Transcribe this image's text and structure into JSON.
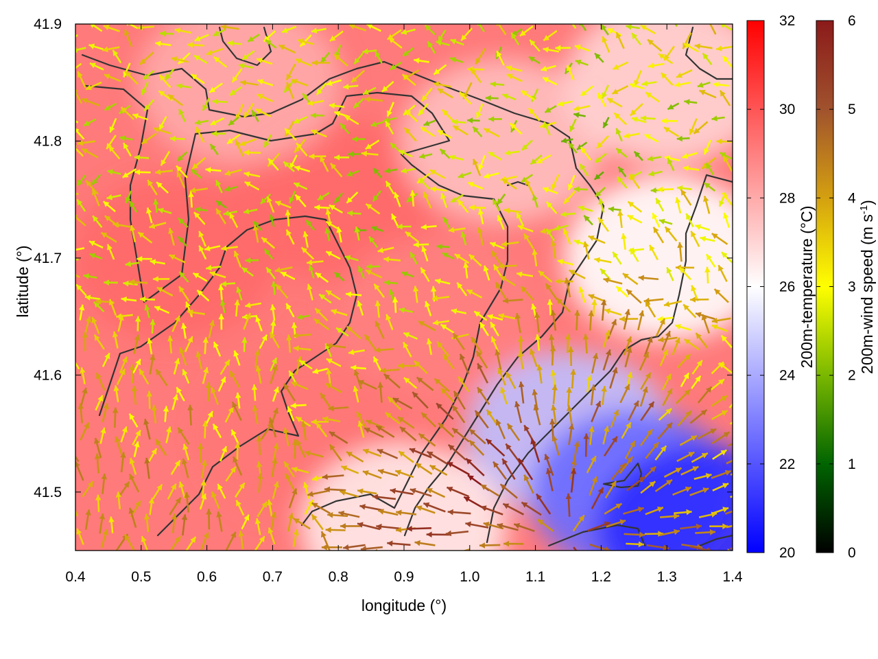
{
  "chart_data": {
    "type": "heatmap",
    "title": "",
    "xlabel": "longitude (°)",
    "ylabel": "latitude (°)",
    "xlim": [
      0.4,
      1.4
    ],
    "ylim": [
      41.45,
      41.9
    ],
    "x_ticks": [
      "0.4",
      "0.5",
      "0.6",
      "0.7",
      "0.8",
      "0.9",
      "1.0",
      "1.1",
      "1.2",
      "1.3",
      "1.4"
    ],
    "y_ticks": [
      "41.5",
      "41.6",
      "41.7",
      "41.8",
      "41.9"
    ],
    "grid": false,
    "legend": "none",
    "overlay": "wind vectors coloured by wind speed with dark grey contour lines",
    "colorbars": [
      {
        "label": "200m-temperature (°C)",
        "range": [
          20,
          32
        ],
        "ticks": [
          "20",
          "22",
          "24",
          "26",
          "28",
          "30",
          "32"
        ],
        "colors": [
          "#0000ff",
          "#ffffff",
          "#ff0000"
        ]
      },
      {
        "label_main": "200m-wind speed (m s",
        "label_sup": "-1",
        "label_end": ")",
        "range": [
          0,
          6
        ],
        "ticks": [
          "0",
          "1",
          "2",
          "3",
          "4",
          "5",
          "6"
        ],
        "colors": [
          "#000000",
          "#006400",
          "#7ab800",
          "#ffff00",
          "#d4a010",
          "#a0522d",
          "#8b1a1a"
        ]
      }
    ],
    "temperature_regions": [
      {
        "lon": 0.55,
        "lat": 41.7,
        "value": 29.5
      },
      {
        "lon": 0.8,
        "lat": 41.75,
        "value": 29.5
      },
      {
        "lon": 0.75,
        "lat": 41.55,
        "value": 29.2
      },
      {
        "lon": 0.95,
        "lat": 41.65,
        "value": 29.0
      },
      {
        "lon": 0.65,
        "lat": 41.85,
        "value": 28.0
      },
      {
        "lon": 1.05,
        "lat": 41.8,
        "value": 27.5
      },
      {
        "lon": 1.3,
        "lat": 41.85,
        "value": 27.0
      },
      {
        "lon": 1.3,
        "lat": 41.7,
        "value": 26.0
      },
      {
        "lon": 1.15,
        "lat": 41.55,
        "value": 24.5
      },
      {
        "lon": 1.25,
        "lat": 41.5,
        "value": 22.5
      },
      {
        "lon": 1.35,
        "lat": 41.47,
        "value": 21.0
      },
      {
        "lon": 0.9,
        "lat": 41.47,
        "value": 26.5
      }
    ],
    "wind_zones": [
      {
        "lon": 0.6,
        "lat": 41.72,
        "speed": 2.8
      },
      {
        "lon": 0.85,
        "lat": 41.72,
        "speed": 2.6
      },
      {
        "lon": 0.5,
        "lat": 41.52,
        "speed": 3.8
      },
      {
        "lon": 1.2,
        "lat": 41.78,
        "speed": 2.5
      },
      {
        "lon": 1.05,
        "lat": 41.5,
        "speed": 5.5
      },
      {
        "lon": 1.25,
        "lat": 41.55,
        "speed": 4.5
      },
      {
        "lon": 1.35,
        "lat": 41.6,
        "speed": 3.5
      }
    ],
    "wind_divergence_center": {
      "lon": 1.15,
      "lat": 41.46
    }
  }
}
